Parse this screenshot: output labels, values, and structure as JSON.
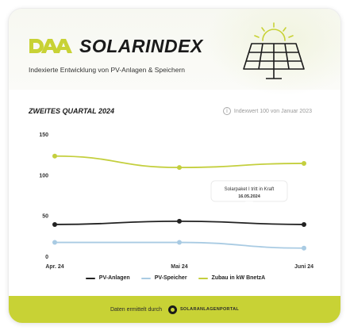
{
  "header": {
    "brand_name": "SOLARINDEX",
    "subtitle": "Indexierte Entwicklung von PV-Anlagen & Speichern"
  },
  "chart_header": {
    "quarter": "ZWEITES QUARTAL 2024",
    "index_note": "Indexwert 100 von Januar 2023"
  },
  "colors": {
    "pv_anlagen": "#222222",
    "pv_speicher": "#a9cbe3",
    "zubau": "#c4cf3e",
    "footer_bg": "#c8d235"
  },
  "chart_data": {
    "type": "line",
    "categories": [
      "Apr. 24",
      "Mai 24",
      "Juni 24"
    ],
    "yticks": [
      0,
      50,
      100,
      150
    ],
    "ylim": [
      0,
      150
    ],
    "grid": false,
    "legend_position": "bottom",
    "series": [
      {
        "name": "PV-Anlagen",
        "values": [
          39,
          43,
          39
        ]
      },
      {
        "name": "PV-Speicher",
        "values": [
          17,
          17,
          10
        ]
      },
      {
        "name": "Zubau in kW BnetzA",
        "values": [
          123,
          109,
          114
        ]
      }
    ],
    "annotation": {
      "text": "Solarpaket I tritt in Kraft",
      "date": "16.05.2024"
    }
  },
  "footer": {
    "text": "Daten ermittelt durch",
    "brand": "SOLARANLAGENPORTAL"
  }
}
